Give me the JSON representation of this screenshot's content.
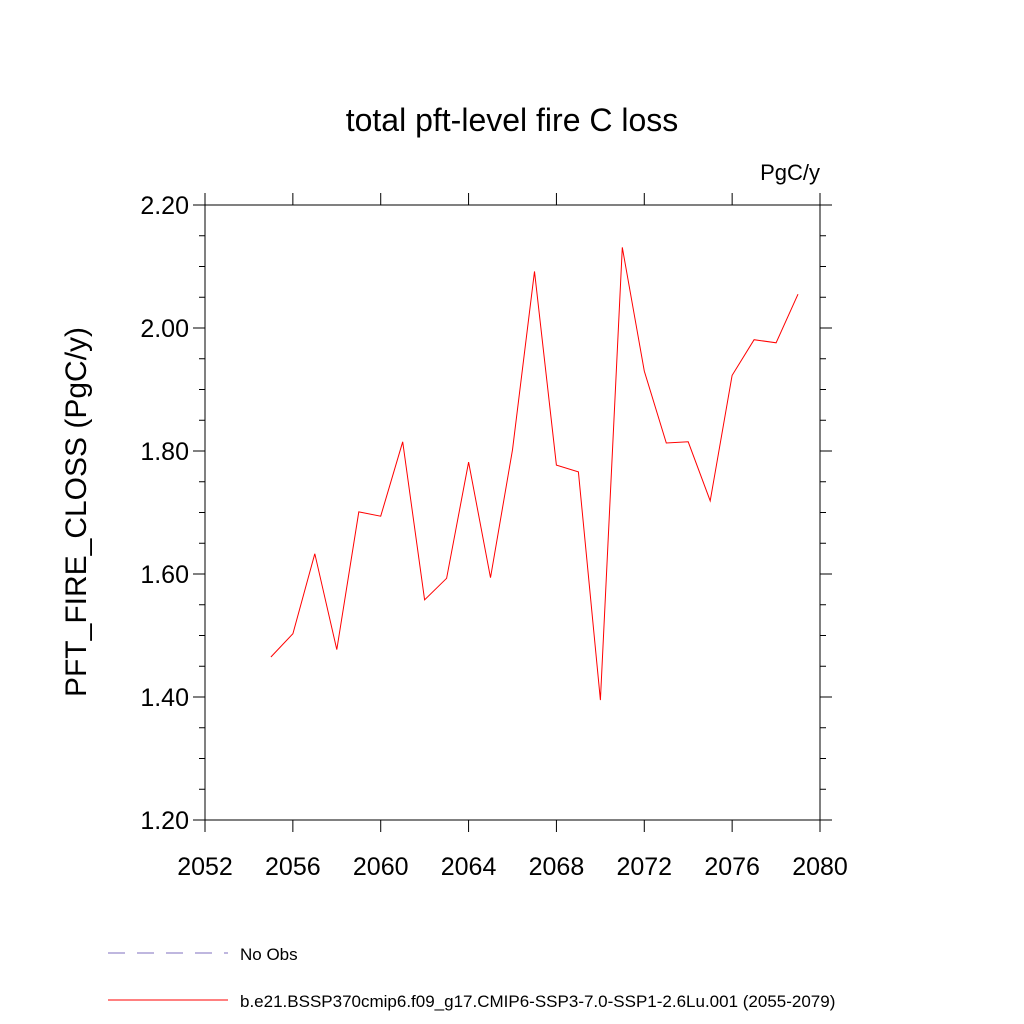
{
  "chart_data": {
    "type": "line",
    "title": "total pft-level fire C loss",
    "units": "PgC/y",
    "xlabel": "",
    "ylabel": "PFT_FIRE_CLOSS  (PgC/y)",
    "xlim": [
      2052,
      2080
    ],
    "ylim": [
      1.2,
      2.2
    ],
    "x_ticks": [
      2052,
      2056,
      2060,
      2064,
      2068,
      2072,
      2076,
      2080
    ],
    "x_tick_labels": [
      "2052",
      "2056",
      "2060",
      "2064",
      "2068",
      "2072",
      "2076",
      "2080"
    ],
    "y_ticks": [
      1.2,
      1.4,
      1.6,
      1.8,
      2.0,
      2.2
    ],
    "y_tick_labels": [
      "1.20",
      "1.40",
      "1.60",
      "1.80",
      "2.00",
      "2.20"
    ],
    "grid": false,
    "series": [
      {
        "name": "b.e21.BSSP370cmip6.f09_g17.CMIP6-SSP3-7.0-SSP1-2.6Lu.001 (2055-2079)",
        "color": "#ff0000",
        "x": [
          2055,
          2056,
          2057,
          2058,
          2059,
          2060,
          2061,
          2062,
          2063,
          2064,
          2065,
          2066,
          2067,
          2068,
          2069,
          2070,
          2071,
          2072,
          2073,
          2074,
          2075,
          2076,
          2077,
          2078,
          2079
        ],
        "values": [
          1.465,
          1.503,
          1.633,
          1.477,
          1.701,
          1.694,
          1.815,
          1.558,
          1.593,
          1.782,
          1.594,
          1.802,
          2.092,
          1.777,
          1.766,
          1.395,
          2.131,
          1.93,
          1.813,
          1.815,
          1.719,
          1.923,
          1.981,
          1.976,
          2.055
        ]
      }
    ],
    "legend": [
      {
        "label": "No Obs",
        "color": "#7f6fbf",
        "style": "dashed"
      },
      {
        "label": "b.e21.BSSP370cmip6.f09_g17.CMIP6-SSP3-7.0-SSP1-2.6Lu.001 (2055-2079)",
        "color": "#ff0000",
        "style": "solid"
      }
    ]
  }
}
